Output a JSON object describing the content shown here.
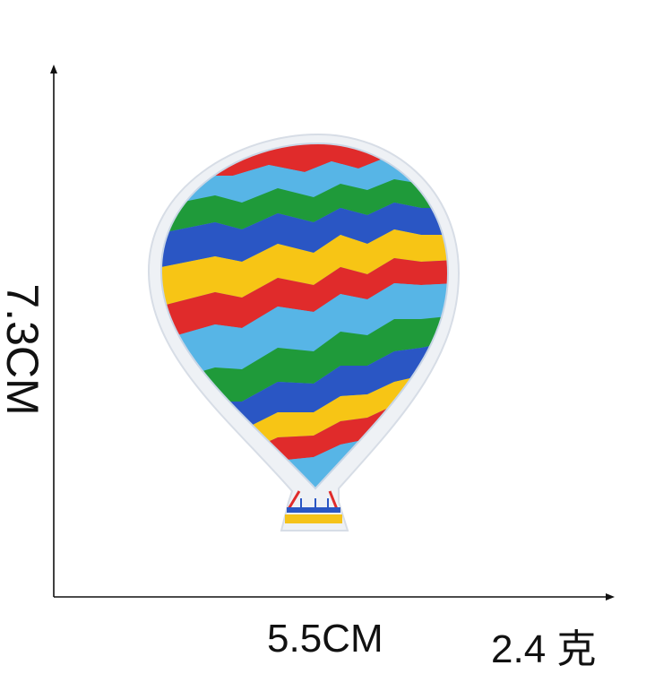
{
  "dimensions": {
    "height_label": "7.3CM",
    "width_label": "5.5CM",
    "weight_label": "2.4 克"
  },
  "colors": {
    "background": "#ffffff",
    "axis": "#111111",
    "patch_border": "#e6eaf0",
    "red": "#e02b2b",
    "yellow": "#f7c515",
    "blue": "#2a56c4",
    "green": "#1f9a3a",
    "light_blue": "#57b5e6",
    "basket_yellow": "#f5c31a"
  },
  "icons": {
    "patch": "hot-air-balloon-icon"
  }
}
